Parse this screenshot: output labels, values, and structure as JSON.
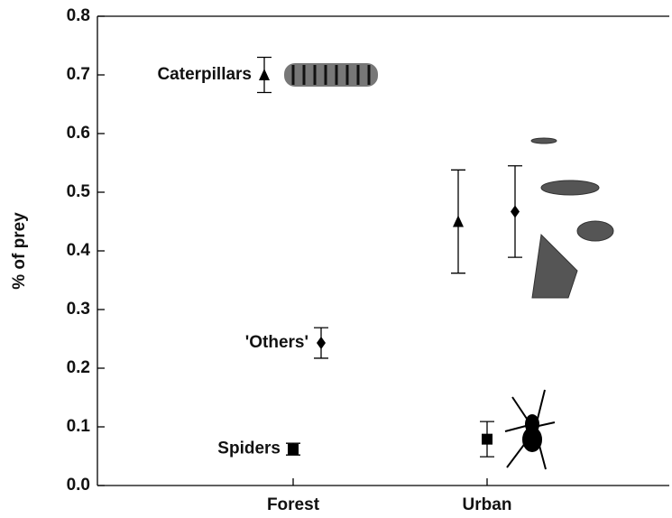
{
  "chart_data": {
    "type": "scatter",
    "y_label": "% of prey",
    "categories": [
      "Forest",
      "Urban"
    ],
    "series": [
      {
        "name": "Caterpillars",
        "marker": "triangle",
        "color": "#000000",
        "values": [
          0.7,
          0.45
        ],
        "errors": [
          0.03,
          0.088
        ]
      },
      {
        "name": "'Others'",
        "marker": "diamond",
        "color": "#000000",
        "values": [
          0.243,
          0.467
        ],
        "errors": [
          0.026,
          0.078
        ]
      },
      {
        "name": "Spiders",
        "marker": "square",
        "color": "#000000",
        "values": [
          0.062,
          0.079
        ],
        "errors": [
          0.01,
          0.03
        ]
      }
    ],
    "ylim": [
      0,
      0.8
    ],
    "yticks": [
      {
        "value": 0,
        "label": "0.0"
      },
      0.1,
      0.2,
      0.3,
      0.4,
      0.5,
      0.6,
      0.7,
      0.8
    ]
  }
}
